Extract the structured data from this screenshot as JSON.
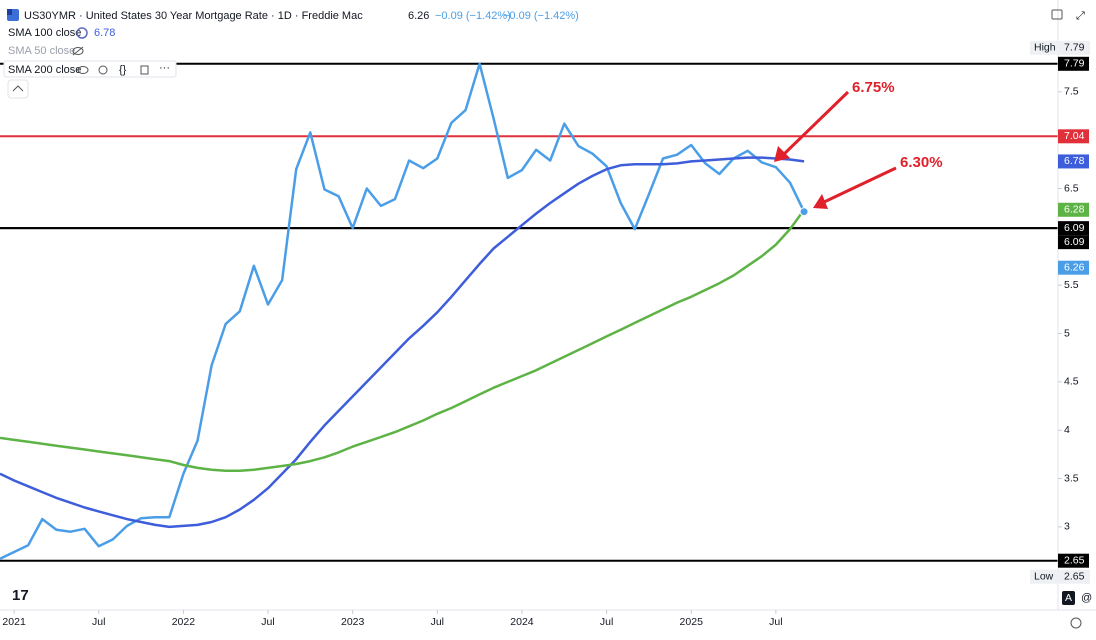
{
  "chart_data": {
    "type": "line",
    "title": "US30YMR · United States 30 Year Mortgage Rate · 1D · Freddie Mac",
    "change_label": "−0.09 (−1.42%)",
    "hidden_indicator": "SMA 50 close",
    "x": [
      "2020-12",
      "2021-01",
      "2021-02",
      "2021-03",
      "2021-04",
      "2021-05",
      "2021-06",
      "2021-07",
      "2021-08",
      "2021-09",
      "2021-10",
      "2021-11",
      "2021-12",
      "2022-01",
      "2022-02",
      "2022-03",
      "2022-04",
      "2022-05",
      "2022-06",
      "2022-07",
      "2022-08",
      "2022-09",
      "2022-10",
      "2022-11",
      "2022-12",
      "2023-01",
      "2023-02",
      "2023-03",
      "2023-04",
      "2023-05",
      "2023-06",
      "2023-07",
      "2023-08",
      "2023-09",
      "2023-10",
      "2023-11",
      "2023-12",
      "2024-01",
      "2024-02",
      "2024-03",
      "2024-04",
      "2024-05",
      "2024-06",
      "2024-07",
      "2024-08",
      "2024-09",
      "2024-10",
      "2024-11",
      "2024-12",
      "2025-01",
      "2025-02",
      "2025-03",
      "2025-04",
      "2025-05",
      "2025-06",
      "2025-07",
      "2025-08",
      "2025-09"
    ],
    "series": [
      {
        "name": "US30YMR",
        "color": "#4a9ee8",
        "values": [
          2.67,
          2.74,
          2.81,
          3.08,
          2.97,
          2.95,
          2.98,
          2.8,
          2.87,
          3.01,
          3.09,
          3.1,
          3.1,
          3.55,
          3.89,
          4.67,
          5.1,
          5.23,
          5.7,
          5.3,
          5.55,
          6.7,
          7.08,
          6.49,
          6.42,
          6.09,
          6.5,
          6.32,
          6.39,
          6.79,
          6.71,
          6.81,
          7.18,
          7.31,
          7.79,
          7.22,
          6.61,
          6.69,
          6.9,
          6.79,
          7.17,
          6.94,
          6.86,
          6.73,
          6.35,
          6.08,
          6.44,
          6.81,
          6.85,
          6.95,
          6.76,
          6.65,
          6.81,
          6.89,
          6.77,
          6.72,
          6.56,
          6.26
        ]
      },
      {
        "name": "SMA 100 close",
        "color": "#3d5ddb",
        "values": [
          3.55,
          3.48,
          3.42,
          3.36,
          3.3,
          3.25,
          3.2,
          3.16,
          3.12,
          3.08,
          3.05,
          3.02,
          3.0,
          3.01,
          3.02,
          3.05,
          3.1,
          3.18,
          3.28,
          3.4,
          3.55,
          3.7,
          3.88,
          4.05,
          4.2,
          4.35,
          4.5,
          4.65,
          4.8,
          4.95,
          5.08,
          5.22,
          5.38,
          5.55,
          5.72,
          5.88,
          6.0,
          6.12,
          6.24,
          6.35,
          6.45,
          6.55,
          6.63,
          6.7,
          6.74,
          6.75,
          6.75,
          6.75,
          6.76,
          6.78,
          6.79,
          6.8,
          6.81,
          6.82,
          6.82,
          6.81,
          6.8,
          6.78
        ]
      },
      {
        "name": "SMA 200 close",
        "color": "#5db345",
        "values": [
          3.92,
          3.9,
          3.88,
          3.86,
          3.84,
          3.82,
          3.8,
          3.78,
          3.76,
          3.74,
          3.72,
          3.7,
          3.68,
          3.64,
          3.61,
          3.59,
          3.58,
          3.58,
          3.59,
          3.61,
          3.63,
          3.65,
          3.68,
          3.72,
          3.77,
          3.83,
          3.88,
          3.93,
          3.98,
          4.04,
          4.1,
          4.17,
          4.23,
          4.3,
          4.37,
          4.44,
          4.5,
          4.56,
          4.62,
          4.69,
          4.76,
          4.83,
          4.9,
          4.97,
          5.04,
          5.11,
          5.18,
          5.25,
          5.32,
          5.38,
          5.45,
          5.52,
          5.6,
          5.7,
          5.8,
          5.92,
          6.08,
          6.28
        ]
      }
    ],
    "hlines": [
      {
        "value": 7.79,
        "color": "#000000"
      },
      {
        "value": 7.04,
        "color": "#e0303a"
      },
      {
        "value": 6.09,
        "color": "#000000"
      },
      {
        "value": 6.09,
        "color": "#000000"
      },
      {
        "value": 2.65,
        "color": "#000000"
      }
    ],
    "high": {
      "label": "High",
      "value": 7.79
    },
    "low": {
      "label": "Low",
      "value": 2.65
    },
    "annotations": [
      {
        "text": "6.75%",
        "color": "#e0202a"
      },
      {
        "text": "6.30%",
        "color": "#e0202a"
      }
    ],
    "xlim": [
      "2020-12",
      "2027-03"
    ],
    "ylim": [
      2.14,
      8.45
    ],
    "yticks": [
      3,
      3.5,
      4,
      4.5,
      5,
      5.5,
      6.5,
      7.5
    ],
    "xticks": [
      {
        "value": "2021-01",
        "label": "2021"
      },
      {
        "value": "2021-07",
        "label": "Jul"
      },
      {
        "value": "2022-01",
        "label": "2022"
      },
      {
        "value": "2022-07",
        "label": "Jul"
      },
      {
        "value": "2023-01",
        "label": "2023"
      },
      {
        "value": "2023-07",
        "label": "Jul"
      },
      {
        "value": "2024-01",
        "label": "2024"
      },
      {
        "value": "2024-07",
        "label": "Jul"
      },
      {
        "value": "2025-01",
        "label": "2025"
      },
      {
        "value": "2025-07",
        "label": "Jul"
      }
    ],
    "grid": false
  }
}
